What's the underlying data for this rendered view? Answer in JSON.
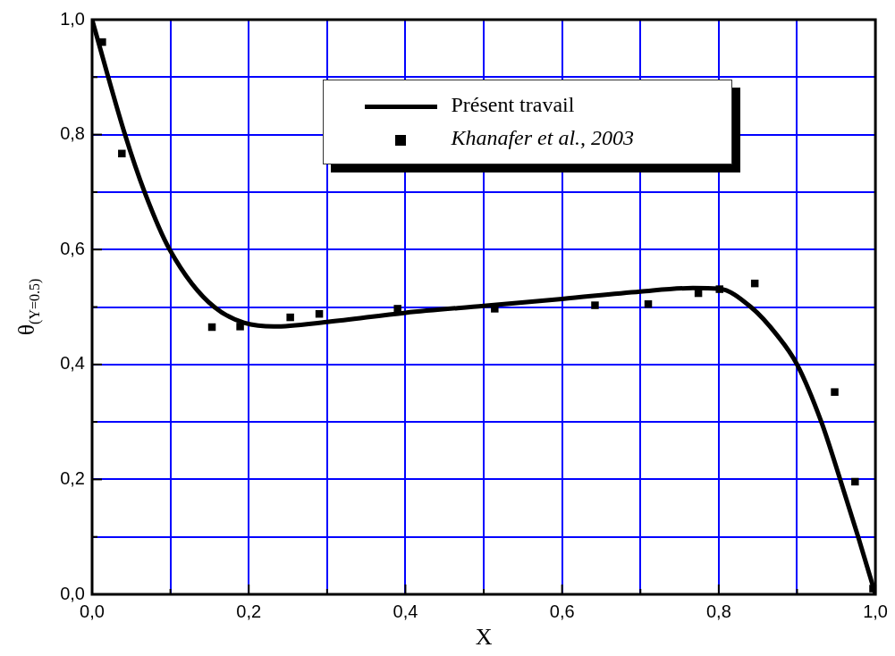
{
  "chart_data": {
    "type": "line",
    "xlabel": "X",
    "ylabel": "θ$_{(Y=0.5)}$",
    "xlim": [
      0,
      1
    ],
    "ylim": [
      0,
      1
    ],
    "xticks": [
      {
        "value": 0,
        "label": "0,0"
      },
      {
        "value": 0.1,
        "label": null
      },
      {
        "value": 0.2,
        "label": "0,2"
      },
      {
        "value": 0.3,
        "label": null
      },
      {
        "value": 0.4,
        "label": "0,4"
      },
      {
        "value": 0.5,
        "label": null
      },
      {
        "value": 0.6,
        "label": "0,6"
      },
      {
        "value": 0.7,
        "label": null
      },
      {
        "value": 0.8,
        "label": "0,8"
      },
      {
        "value": 0.9,
        "label": null
      },
      {
        "value": 1,
        "label": "1,0"
      }
    ],
    "yticks": [
      {
        "value": 0,
        "label": "0,0"
      },
      {
        "value": 0.1,
        "label": null
      },
      {
        "value": 0.2,
        "label": "0,2"
      },
      {
        "value": 0.3,
        "label": null
      },
      {
        "value": 0.4,
        "label": "0,4"
      },
      {
        "value": 0.5,
        "label": null
      },
      {
        "value": 0.6,
        "label": "0,6"
      },
      {
        "value": 0.7,
        "label": null
      },
      {
        "value": 0.8,
        "label": "0,8"
      },
      {
        "value": 0.9,
        "label": null
      },
      {
        "value": 1,
        "label": "1,0"
      }
    ],
    "grid": true,
    "legend": "top",
    "series": [
      {
        "name": "Présent travail",
        "color": "#000000",
        "marker": "none",
        "x": [
          0,
          0.042,
          0.067,
          0.099,
          0.156,
          0.232,
          0.3,
          0.4,
          0.5,
          0.6,
          0.7,
          0.767,
          0.8,
          0.841,
          0.875,
          0.9,
          0.931,
          0.955,
          0.978,
          1
        ],
        "values": [
          1,
          0.8,
          0.7,
          0.6,
          0.5,
          0.466,
          0.474,
          0.49,
          0.502,
          0.514,
          0.527,
          0.533,
          0.532,
          0.5,
          0.45,
          0.4,
          0.3,
          0.2,
          0.1,
          0
        ]
      },
      {
        "name": "Khanafer et al., 2003",
        "type": "scatter",
        "color": "#000000",
        "marker": "square",
        "x": [
          0.013,
          0.038,
          0.153,
          0.189,
          0.253,
          0.29,
          0.39,
          0.514,
          0.642,
          0.71,
          0.774,
          0.801,
          0.846,
          0.948,
          0.974,
          0.997
        ],
        "values": [
          0.961,
          0.767,
          0.465,
          0.466,
          0.482,
          0.488,
          0.497,
          0.497,
          0.503,
          0.505,
          0.524,
          0.531,
          0.541,
          0.352,
          0.196,
          0.01
        ]
      }
    ]
  }
}
